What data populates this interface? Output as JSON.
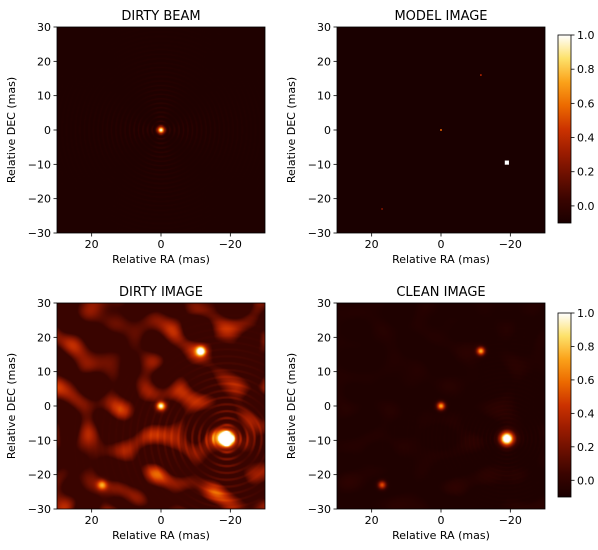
{
  "figure": {
    "background": "#ffffff",
    "colormap": [
      "#1a0000",
      "#3a0400",
      "#6a0f00",
      "#9c1c00",
      "#cc3300",
      "#ec6a00",
      "#fba21a",
      "#fde16a",
      "#ffffff"
    ]
  },
  "chart_data": [
    {
      "type": "heatmap",
      "title": "DIRTY BEAM",
      "xlabel": "Relative RA (mas)",
      "ylabel": "Relative DEC (mas)",
      "xlim": [
        30,
        -30
      ],
      "ylim": [
        -30,
        30
      ],
      "xticks": [
        20,
        0,
        -20
      ],
      "yticks": [
        30,
        20,
        10,
        0,
        -10,
        -20,
        -30
      ],
      "background_level": 0.02,
      "sources": [
        {
          "x": 0,
          "y": 0,
          "peak": 1.0,
          "width": 0.7
        }
      ],
      "sidelobes": [
        {
          "x": 0,
          "y": 0,
          "amplitude": 0.1,
          "spacing": 1.3,
          "extent": 12
        }
      ],
      "noise_level": 0.0,
      "colorbar": null
    },
    {
      "type": "heatmap",
      "title": "MODEL IMAGE",
      "xlabel": "Relative RA (mas)",
      "ylabel": "Relative DEC (mas)",
      "xlim": [
        30,
        -30
      ],
      "ylim": [
        -30,
        30
      ],
      "xticks": [
        20,
        0,
        -20
      ],
      "yticks": [
        30,
        20,
        10,
        0,
        -10,
        -20,
        -30
      ],
      "background_level": 0.0,
      "pixel_sources": [
        {
          "x": -19,
          "y": -9.5,
          "value": 1.0,
          "size": 1.2
        },
        {
          "x": 0,
          "y": 0,
          "value": 0.6,
          "size": 0.5
        },
        {
          "x": -11.5,
          "y": 16,
          "value": 0.4,
          "size": 0.5
        },
        {
          "x": 17,
          "y": -23,
          "value": 0.3,
          "size": 0.5
        }
      ],
      "colorbar": {
        "min": -0.1,
        "max": 1.0,
        "ticks": [
          1.0,
          0.8,
          0.6,
          0.4,
          0.2,
          0.0
        ],
        "tick_labels": [
          "1.0",
          "0.8",
          "0.6",
          "0.4",
          "0.2",
          "0.0"
        ]
      }
    },
    {
      "type": "heatmap",
      "title": "DIRTY IMAGE",
      "xlabel": "Relative RA (mas)",
      "ylabel": "Relative DEC (mas)",
      "xlim": [
        30,
        -30
      ],
      "ylim": [
        -30,
        30
      ],
      "xticks": [
        20,
        0,
        -20
      ],
      "yticks": [
        30,
        20,
        10,
        0,
        -10,
        -20,
        -30
      ],
      "background_level": 0.12,
      "sources": [
        {
          "x": -19,
          "y": -9.5,
          "peak": 1.4,
          "width": 1.6
        },
        {
          "x": 0,
          "y": 0,
          "peak": 0.9,
          "width": 0.9
        },
        {
          "x": -11.5,
          "y": 16,
          "peak": 0.85,
          "width": 0.9
        },
        {
          "x": 17,
          "y": -23,
          "peak": 0.5,
          "width": 1.0
        }
      ],
      "sidelobes": [
        {
          "x": -19,
          "y": -9.5,
          "amplitude": 0.35,
          "spacing": 2.0,
          "extent": 10
        }
      ],
      "noise_level": 0.28,
      "colorbar": null
    },
    {
      "type": "heatmap",
      "title": "CLEAN IMAGE",
      "xlabel": "Relative RA (mas)",
      "ylabel": "Relative DEC (mas)",
      "xlim": [
        30,
        -30
      ],
      "ylim": [
        -30,
        30
      ],
      "xticks": [
        20,
        0,
        -20
      ],
      "yticks": [
        30,
        20,
        10,
        0,
        -10,
        -20,
        -30
      ],
      "background_level": 0.02,
      "sources": [
        {
          "x": -19,
          "y": -9.5,
          "peak": 1.3,
          "width": 1.3
        },
        {
          "x": 0,
          "y": 0,
          "peak": 0.75,
          "width": 0.8
        },
        {
          "x": -11.5,
          "y": 16,
          "peak": 0.75,
          "width": 0.8
        },
        {
          "x": 17,
          "y": -23,
          "peak": 0.55,
          "width": 0.8
        }
      ],
      "sidelobes": [
        {
          "x": -19,
          "y": -9.5,
          "amplitude": 0.05,
          "spacing": 1.2,
          "extent": 11
        }
      ],
      "noise_level": 0.03,
      "colorbar": {
        "min": -0.1,
        "max": 1.0,
        "ticks": [
          1.0,
          0.8,
          0.6,
          0.4,
          0.2,
          0.0
        ],
        "tick_labels": [
          "1.0",
          "0.8",
          "0.6",
          "0.4",
          "0.2",
          "0.0"
        ]
      }
    }
  ]
}
